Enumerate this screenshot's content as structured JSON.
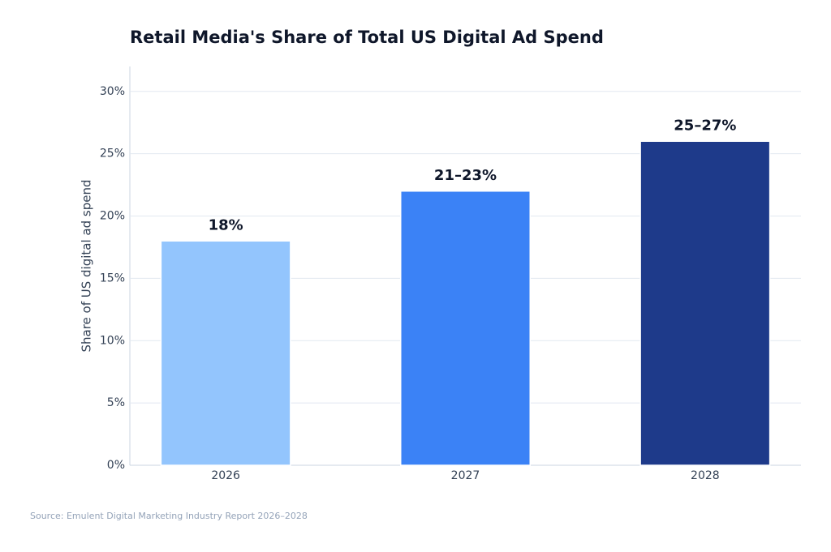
{
  "chart_data": {
    "type": "bar",
    "title": "Retail Media's Share of Total US Digital Ad Spend",
    "ylabel": "Share of US digital ad spend",
    "source": "Source: Emulent Digital Marketing Industry Report 2026–2028",
    "categories": [
      "2026",
      "2027",
      "2028"
    ],
    "values": [
      18,
      22,
      26
    ],
    "value_labels": [
      "18%",
      "21–23%",
      "25–27%"
    ],
    "colors": [
      "#93c5fd",
      "#3b82f6",
      "#1e3a8a"
    ],
    "ylim": [
      0,
      32
    ],
    "yticks": [
      {
        "value": 0,
        "label": "0%"
      },
      {
        "value": 5,
        "label": "5%"
      },
      {
        "value": 10,
        "label": "10%"
      },
      {
        "value": 15,
        "label": "15%"
      },
      {
        "value": 20,
        "label": "20%"
      },
      {
        "value": 25,
        "label": "25%"
      },
      {
        "value": 30,
        "label": "30%"
      }
    ],
    "grid": true
  }
}
